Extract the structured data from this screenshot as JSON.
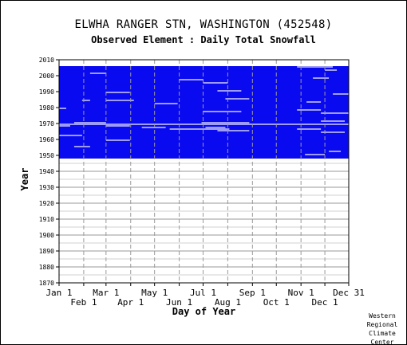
{
  "header": {
    "title": "ELWHA RANGER STN, WASHINGTON   (452548)",
    "subtitle": "Observed Element : Daily Total Snowfall"
  },
  "credit": "Western\nRegional\nClimate\nCenter",
  "colors": {
    "data": "#0a0af0",
    "grid": "#9a9a9a",
    "frame": "#000000"
  },
  "chart_data": {
    "type": "heatmap",
    "title": "ELWHA RANGER STN, WASHINGTON   (452548)",
    "subtitle": "Observed Element : Daily Total Snowfall",
    "xlabel": "Day of Year",
    "ylabel": "Year",
    "xlim": [
      1,
      365
    ],
    "ylim": [
      1870,
      2010
    ],
    "y_ticks": [
      1870,
      1880,
      1890,
      1900,
      1910,
      1920,
      1930,
      1940,
      1950,
      1960,
      1970,
      1980,
      1990,
      2000,
      2010
    ],
    "x_ticks_top_row": [
      {
        "label": "Jan 1",
        "day": 1
      },
      {
        "label": "Mar 1",
        "day": 60
      },
      {
        "label": "May 1",
        "day": 121
      },
      {
        "label": "Jul 1",
        "day": 182
      },
      {
        "label": "Sep 1",
        "day": 244
      },
      {
        "label": "Nov 1",
        "day": 305
      },
      {
        "label": "Dec 31",
        "day": 365
      }
    ],
    "x_ticks_bottom_row": [
      {
        "label": "Feb 1",
        "day": 32
      },
      {
        "label": "Apr 1",
        "day": 91
      },
      {
        "label": "Jun 1",
        "day": 152
      },
      {
        "label": "Aug 1",
        "day": 213
      },
      {
        "label": "Oct 1",
        "day": 274
      },
      {
        "label": "Dec 1",
        "day": 335
      }
    ],
    "grid": true,
    "record_years": [
      1948,
      2005
    ],
    "data_present_color": "#0a0af0",
    "gaps": [
      {
        "year": 1969,
        "start": 1,
        "end": 365
      },
      {
        "year": 1968,
        "start": 1,
        "end": 15
      },
      {
        "year": 1968,
        "start": 60,
        "end": 90
      },
      {
        "year": 1967,
        "start": 105,
        "end": 135
      },
      {
        "year": 1967,
        "start": 185,
        "end": 210
      },
      {
        "year": 1966,
        "start": 140,
        "end": 215
      },
      {
        "year": 1966,
        "start": 300,
        "end": 330
      },
      {
        "year": 1965,
        "start": 200,
        "end": 240
      },
      {
        "year": 1964,
        "start": 330,
        "end": 360
      },
      {
        "year": 1970,
        "start": 20,
        "end": 60
      },
      {
        "year": 1970,
        "start": 180,
        "end": 240
      },
      {
        "year": 1971,
        "start": 330,
        "end": 360
      },
      {
        "year": 1984,
        "start": 30,
        "end": 40
      },
      {
        "year": 1984,
        "start": 60,
        "end": 95
      },
      {
        "year": 1985,
        "start": 210,
        "end": 240
      },
      {
        "year": 1983,
        "start": 312,
        "end": 330
      },
      {
        "year": 1982,
        "start": 121,
        "end": 150
      },
      {
        "year": 1976,
        "start": 330,
        "end": 365
      },
      {
        "year": 1977,
        "start": 182,
        "end": 230
      },
      {
        "year": 1978,
        "start": 300,
        "end": 330
      },
      {
        "year": 1979,
        "start": 1,
        "end": 10
      },
      {
        "year": 1988,
        "start": 345,
        "end": 365
      },
      {
        "year": 1989,
        "start": 60,
        "end": 90
      },
      {
        "year": 1990,
        "start": 200,
        "end": 230
      },
      {
        "year": 1995,
        "start": 182,
        "end": 213
      },
      {
        "year": 1997,
        "start": 152,
        "end": 182
      },
      {
        "year": 1998,
        "start": 320,
        "end": 340
      },
      {
        "year": 2001,
        "start": 40,
        "end": 60
      },
      {
        "year": 2003,
        "start": 335,
        "end": 350
      },
      {
        "year": 1952,
        "start": 340,
        "end": 355
      },
      {
        "year": 1955,
        "start": 20,
        "end": 40
      },
      {
        "year": 1959,
        "start": 60,
        "end": 90
      },
      {
        "year": 1962,
        "start": 1,
        "end": 30
      },
      {
        "year": 1950,
        "start": 310,
        "end": 335
      },
      {
        "year": 2005,
        "start": 300,
        "end": 345
      },
      {
        "year": 2006,
        "start": 1,
        "end": 60
      },
      {
        "year": 2006,
        "start": 60,
        "end": 365
      }
    ]
  }
}
